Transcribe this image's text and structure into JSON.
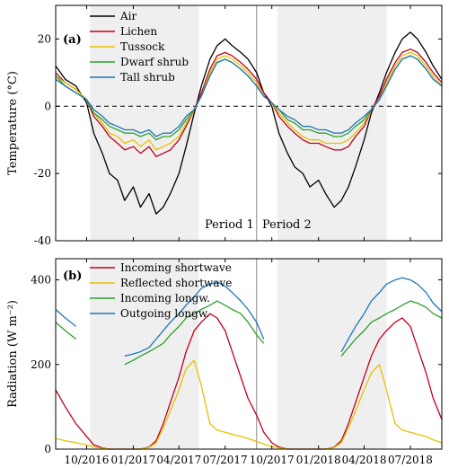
{
  "chart_data": [
    {
      "panel": "(a)",
      "type": "line",
      "ylabel": "Temperature (°C)",
      "ylim": [
        -40,
        30
      ],
      "yticks": [
        -40,
        -20,
        0,
        20
      ],
      "zero_line": "dashed",
      "legend_placement": "top-left",
      "period_labels": [
        "Period 1",
        "Period 2"
      ],
      "shaded_periods": [
        [
          "2016-10-08",
          "2017-05-10"
        ],
        [
          "2017-10-12",
          "2018-05-15"
        ]
      ],
      "divider_date": "2017-09-01",
      "x": [
        "2016-08-01",
        "2016-08-20",
        "2016-09-10",
        "2016-10-01",
        "2016-10-15",
        "2016-11-01",
        "2016-11-15",
        "2016-12-01",
        "2016-12-15",
        "2017-01-01",
        "2017-01-15",
        "2017-02-01",
        "2017-02-15",
        "2017-03-01",
        "2017-03-15",
        "2017-04-01",
        "2017-04-15",
        "2017-05-01",
        "2017-05-15",
        "2017-06-01",
        "2017-06-15",
        "2017-07-01",
        "2017-07-15",
        "2017-08-01",
        "2017-08-15",
        "2017-09-01",
        "2017-09-15",
        "2017-10-01",
        "2017-10-15",
        "2017-11-01",
        "2017-11-15",
        "2017-12-01",
        "2017-12-15",
        "2018-01-01",
        "2018-01-15",
        "2018-02-01",
        "2018-02-15",
        "2018-03-01",
        "2018-03-15",
        "2018-04-01",
        "2018-04-15",
        "2018-05-01",
        "2018-05-15",
        "2018-06-01",
        "2018-06-15",
        "2018-07-01",
        "2018-07-15",
        "2018-08-01",
        "2018-08-15",
        "2018-09-01"
      ],
      "series": [
        {
          "name": "Air",
          "color": "#000000",
          "values": [
            12,
            8,
            6,
            1,
            -8,
            -14,
            -20,
            -22,
            -28,
            -24,
            -30,
            -26,
            -32,
            -30,
            -26,
            -20,
            -12,
            -2,
            6,
            14,
            18,
            20,
            18,
            16,
            14,
            10,
            4,
            0,
            -8,
            -14,
            -18,
            -20,
            -24,
            -22,
            -26,
            -30,
            -28,
            -24,
            -18,
            -10,
            -2,
            4,
            10,
            16,
            20,
            22,
            20,
            16,
            12,
            8
          ]
        },
        {
          "name": "Lichen",
          "color": "#c0001a",
          "values": [
            10,
            7,
            5,
            2,
            -3,
            -6,
            -9,
            -11,
            -13,
            -12,
            -14,
            -12,
            -15,
            -14,
            -13,
            -10,
            -6,
            -1,
            4,
            11,
            15,
            16,
            15,
            13,
            11,
            8,
            4,
            1,
            -3,
            -6,
            -8,
            -10,
            -11,
            -11,
            -12,
            -13,
            -13,
            -12,
            -9,
            -6,
            -1,
            3,
            8,
            13,
            16,
            17,
            16,
            13,
            10,
            7
          ]
        },
        {
          "name": "Tussock",
          "color": "#e8c000",
          "values": [
            9,
            7,
            5,
            2,
            -2,
            -5,
            -8,
            -9,
            -11,
            -10,
            -12,
            -10,
            -13,
            -12,
            -11,
            -9,
            -5,
            -1,
            3,
            10,
            14,
            15,
            14,
            12,
            10,
            7,
            3,
            1,
            -2,
            -5,
            -7,
            -9,
            -10,
            -10,
            -11,
            -11,
            -11,
            -10,
            -8,
            -5,
            -1,
            2,
            7,
            12,
            15,
            16,
            15,
            12,
            9,
            6
          ]
        },
        {
          "name": "Dwarf shrub",
          "color": "#2ca02c",
          "values": [
            9,
            6,
            4,
            2,
            -2,
            -4,
            -6,
            -7,
            -8,
            -8,
            -9,
            -8,
            -10,
            -9,
            -9,
            -7,
            -4,
            -1,
            3,
            9,
            13,
            14,
            13,
            11,
            9,
            6,
            3,
            1,
            -1,
            -4,
            -5,
            -7,
            -7,
            -8,
            -8,
            -9,
            -9,
            -8,
            -6,
            -4,
            -1,
            2,
            6,
            11,
            14,
            15,
            14,
            11,
            8,
            6
          ]
        },
        {
          "name": "Tall shrub",
          "color": "#1f77b4",
          "values": [
            8,
            6,
            4,
            2,
            -1,
            -3,
            -5,
            -6,
            -7,
            -7,
            -8,
            -7,
            -9,
            -8,
            -8,
            -6,
            -3,
            -1,
            3,
            9,
            13,
            14,
            13,
            11,
            9,
            6,
            3,
            1,
            -1,
            -3,
            -4,
            -6,
            -6,
            -7,
            -7,
            -8,
            -8,
            -7,
            -5,
            -3,
            -1,
            2,
            6,
            11,
            14,
            15,
            14,
            11,
            8,
            6
          ]
        }
      ]
    },
    {
      "panel": "(b)",
      "type": "line",
      "ylabel": "Radiation (W m⁻²)",
      "ylim": [
        0,
        450
      ],
      "yticks": [
        0,
        200,
        400
      ],
      "legend_placement": "top-left",
      "x_ticks": [
        "10/2016",
        "01/2017",
        "04/2017",
        "07/2017",
        "10/2017",
        "01/2018",
        "04/2018",
        "07/2018"
      ],
      "shaded_periods": [
        [
          "2016-10-08",
          "2017-05-10"
        ],
        [
          "2017-10-12",
          "2018-05-15"
        ]
      ],
      "divider_date": "2017-09-01",
      "x": [
        "2016-08-01",
        "2016-08-20",
        "2016-09-10",
        "2016-10-01",
        "2016-10-15",
        "2016-11-01",
        "2016-11-15",
        "2016-12-01",
        "2016-12-15",
        "2017-01-01",
        "2017-01-15",
        "2017-02-01",
        "2017-02-15",
        "2017-03-01",
        "2017-03-15",
        "2017-04-01",
        "2017-04-15",
        "2017-05-01",
        "2017-05-15",
        "2017-06-01",
        "2017-06-15",
        "2017-07-01",
        "2017-07-15",
        "2017-08-01",
        "2017-08-15",
        "2017-09-01",
        "2017-09-15",
        "2017-10-01",
        "2017-10-15",
        "2017-11-01",
        "2017-11-15",
        "2017-12-01",
        "2017-12-15",
        "2018-01-01",
        "2018-01-15",
        "2018-02-01",
        "2018-02-15",
        "2018-03-01",
        "2018-03-15",
        "2018-04-01",
        "2018-04-15",
        "2018-05-01",
        "2018-05-15",
        "2018-06-01",
        "2018-06-15",
        "2018-07-01",
        "2018-07-15",
        "2018-08-01",
        "2018-08-15",
        "2018-09-01"
      ],
      "series": [
        {
          "name": "Incoming shortwave",
          "color": "#c0001a",
          "values": [
            140,
            100,
            60,
            30,
            10,
            3,
            0,
            0,
            0,
            0,
            0,
            5,
            20,
            60,
            110,
            170,
            230,
            280,
            300,
            320,
            310,
            280,
            230,
            170,
            120,
            80,
            40,
            15,
            5,
            0,
            0,
            0,
            0,
            0,
            0,
            5,
            20,
            60,
            110,
            170,
            220,
            260,
            280,
            300,
            310,
            290,
            240,
            180,
            120,
            70
          ]
        },
        {
          "name": "Reflected shortwave",
          "color": "#e8c000",
          "values": [
            25,
            20,
            15,
            10,
            5,
            2,
            0,
            0,
            0,
            0,
            0,
            4,
            15,
            50,
            90,
            140,
            190,
            210,
            150,
            60,
            45,
            40,
            35,
            30,
            25,
            18,
            12,
            6,
            3,
            0,
            0,
            0,
            0,
            0,
            0,
            4,
            15,
            50,
            90,
            140,
            180,
            200,
            140,
            60,
            45,
            40,
            35,
            30,
            22,
            15
          ]
        },
        {
          "name": "Incoming longw.",
          "color": "#2ca02c",
          "values": [
            300,
            280,
            260,
            null,
            null,
            null,
            null,
            null,
            200,
            210,
            220,
            230,
            240,
            250,
            270,
            290,
            310,
            320,
            330,
            340,
            350,
            340,
            330,
            320,
            300,
            270,
            250,
            null,
            null,
            null,
            null,
            null,
            null,
            null,
            null,
            null,
            220,
            240,
            260,
            280,
            300,
            310,
            320,
            330,
            340,
            350,
            345,
            335,
            320,
            310
          ]
        },
        {
          "name": "Outgoing longw.",
          "color": "#1f77b4",
          "values": [
            330,
            310,
            290,
            null,
            null,
            null,
            null,
            null,
            220,
            225,
            230,
            240,
            260,
            280,
            300,
            320,
            340,
            360,
            380,
            390,
            395,
            385,
            370,
            350,
            330,
            300,
            260,
            null,
            null,
            null,
            null,
            null,
            null,
            null,
            null,
            null,
            230,
            260,
            290,
            320,
            350,
            370,
            390,
            400,
            405,
            400,
            390,
            370,
            345,
            325
          ]
        }
      ]
    }
  ],
  "text": {
    "panel_a_tag": "(a)",
    "panel_b_tag": "(b)",
    "ylabel_a": "Temperature (°C)",
    "ylabel_b": "Radiation (W m⁻²)",
    "period1": "Period 1",
    "period2": "Period 2"
  }
}
